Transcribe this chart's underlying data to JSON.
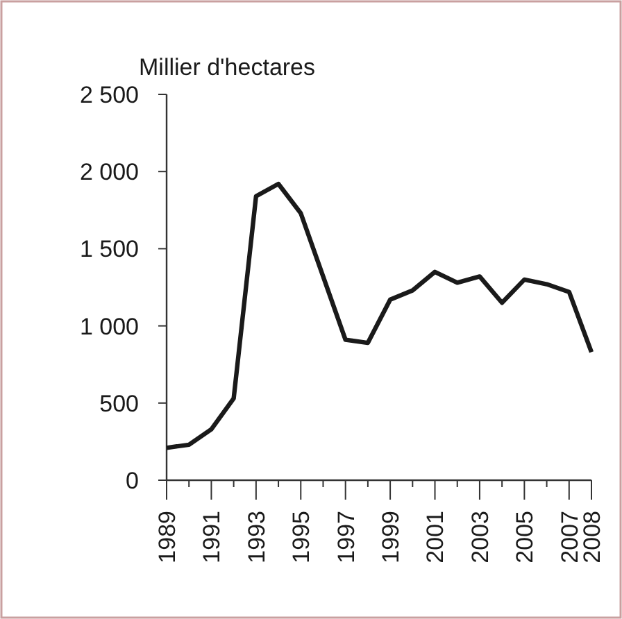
{
  "chart_data": {
    "type": "line",
    "title": "Millier d'hectares",
    "x": [
      1989,
      1990,
      1991,
      1992,
      1993,
      1994,
      1995,
      1996,
      1997,
      1998,
      1999,
      2000,
      2001,
      2002,
      2003,
      2004,
      2005,
      2006,
      2007,
      2008
    ],
    "series": [
      {
        "color": "#1a1a1a",
        "values": [
          210,
          230,
          330,
          530,
          1840,
          1920,
          1730,
          1320,
          910,
          890,
          1170,
          1230,
          1350,
          1280,
          1320,
          1150,
          1300,
          1270,
          1220,
          830
        ]
      }
    ],
    "xlim": [
      1989,
      2008
    ],
    "xticks": [
      1989,
      {
        "value": 1990,
        "label": null
      },
      1991,
      {
        "value": 1992,
        "label": null
      },
      1993,
      {
        "value": 1994,
        "label": null
      },
      1995,
      {
        "value": 1996,
        "label": null
      },
      1997,
      {
        "value": 1998,
        "label": null
      },
      1999,
      {
        "value": 2000,
        "label": null
      },
      2001,
      {
        "value": 2002,
        "label": null
      },
      2003,
      {
        "value": 2004,
        "label": null
      },
      2005,
      {
        "value": 2006,
        "label": null
      },
      2007,
      2008
    ],
    "ylim": [
      0,
      2500
    ],
    "yticks": [
      0,
      500,
      {
        "value": 1000,
        "label": "1 000"
      },
      {
        "value": 1500,
        "label": "1 500"
      },
      {
        "value": 2000,
        "label": "2 000"
      },
      {
        "value": 2500,
        "label": "2 500"
      }
    ],
    "grid": false,
    "marker": "none",
    "line_style": "solid"
  }
}
